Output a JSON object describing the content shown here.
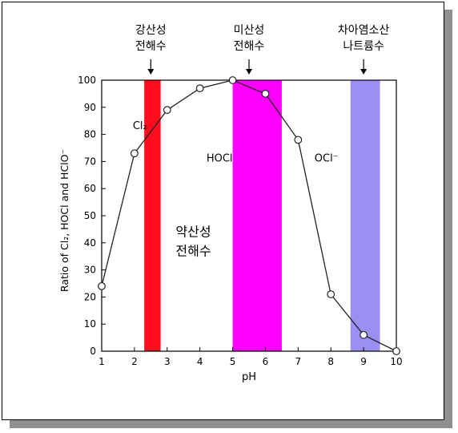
{
  "chart_data": {
    "type": "line",
    "xlabel": "pH",
    "ylabel": "Ratio of Cl₂, HOCl and HClO⁻",
    "x_ticks": [
      1,
      2,
      3,
      4,
      5,
      6,
      7,
      8,
      9,
      10
    ],
    "y_ticks": [
      0,
      10,
      20,
      30,
      40,
      50,
      60,
      70,
      80,
      90,
      100
    ],
    "xlim": [
      1,
      10
    ],
    "ylim": [
      0,
      100
    ],
    "grid": false,
    "series": [
      {
        "points": [
          [
            1.0,
            24
          ],
          [
            2.0,
            73
          ],
          [
            3.0,
            89
          ],
          [
            4.0,
            97
          ],
          [
            5.0,
            100
          ],
          [
            6.0,
            95
          ],
          [
            7.0,
            78
          ],
          [
            8.0,
            21
          ],
          [
            9.0,
            6
          ],
          [
            10.0,
            0
          ]
        ]
      }
    ],
    "bands": [
      {
        "x_from": 2.3,
        "x_to": 2.8,
        "color": "#ff0d1f"
      },
      {
        "x_from": 5.0,
        "x_to": 6.5,
        "color": "#ff00ff"
      },
      {
        "x_from": 8.6,
        "x_to": 9.5,
        "color": "#9b8ff2"
      }
    ],
    "region_labels": [
      {
        "text": "Cl₂",
        "x": 1.95,
        "y": 82
      },
      {
        "text": "HOCl",
        "x": 4.2,
        "y": 70
      },
      {
        "text": "OCl⁻",
        "x": 7.5,
        "y": 70
      }
    ],
    "annotations": [
      {
        "lines": [
          "강산성",
          "전해수"
        ],
        "x": 2.5,
        "arrow": true
      },
      {
        "lines": [
          "미산성",
          "전해수"
        ],
        "x": 5.5,
        "arrow": true
      },
      {
        "lines": [
          "차아염소산",
          "나트륨수"
        ],
        "x": 9.0,
        "arrow": true
      },
      {
        "lines": [
          "약산성",
          "전해수"
        ],
        "x": 3.8,
        "y": 44,
        "arrow": false
      }
    ]
  }
}
